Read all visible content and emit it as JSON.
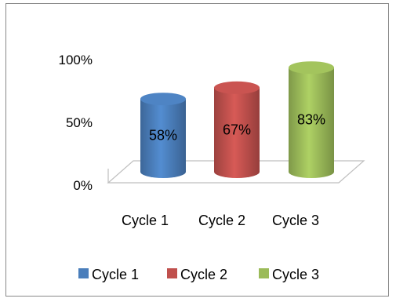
{
  "chart_data": {
    "type": "bar",
    "style": "3d-cylinder",
    "categories": [
      "Cycle 1",
      "Cycle 2",
      "Cycle 3"
    ],
    "values": [
      58,
      67,
      83
    ],
    "value_labels": [
      "58%",
      "67%",
      "83%"
    ],
    "y_ticks": [
      "0%",
      "50%",
      "100%"
    ],
    "ylim": [
      0,
      100
    ],
    "legend_position": "bottom",
    "grid": false,
    "colors": [
      "#4a7ebb",
      "#c0504d",
      "#9bbb59"
    ],
    "legend": [
      {
        "label": "Cycle 1",
        "color": "#4a7ebb"
      },
      {
        "label": "Cycle 2",
        "color": "#c0504d"
      },
      {
        "label": "Cycle 3",
        "color": "#9bbb59"
      }
    ]
  }
}
